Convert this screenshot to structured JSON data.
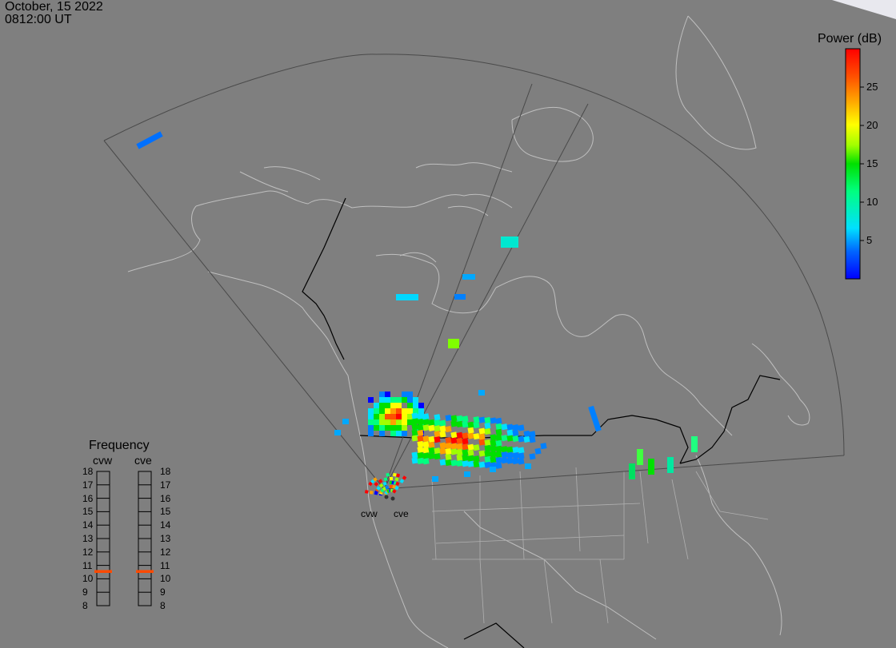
{
  "header": {
    "date": "October, 15 2022",
    "time": "0812:00 UT"
  },
  "power_legend": {
    "title": "Power (dB)",
    "ticks": [
      "25",
      "20",
      "15",
      "10",
      "5"
    ],
    "tick_values": [
      25,
      20,
      15,
      10,
      5
    ],
    "range": [
      0,
      30
    ],
    "colors": [
      "#0000ff",
      "#0080ff",
      "#00e0ff",
      "#00ff80",
      "#00e000",
      "#a0ff00",
      "#ffff00",
      "#ffa000",
      "#ff5000",
      "#ff0000"
    ]
  },
  "frequency_legend": {
    "title": "Frequency",
    "radars": [
      {
        "name": "cvw",
        "selected_mhz": 11
      },
      {
        "name": "cve",
        "selected_mhz": 11
      }
    ],
    "scale": [
      "18",
      "17",
      "16",
      "15",
      "14",
      "13",
      "12",
      "11",
      "10",
      "9",
      "8"
    ],
    "marker_color": "#ff4a00"
  },
  "sites": [
    {
      "name": "cvw"
    },
    {
      "name": "cve"
    }
  ],
  "colors": {
    "background": "#7f7f7f",
    "coastline": "#bfbfbf",
    "border": "#000000",
    "fov": "#4a4a4a"
  }
}
